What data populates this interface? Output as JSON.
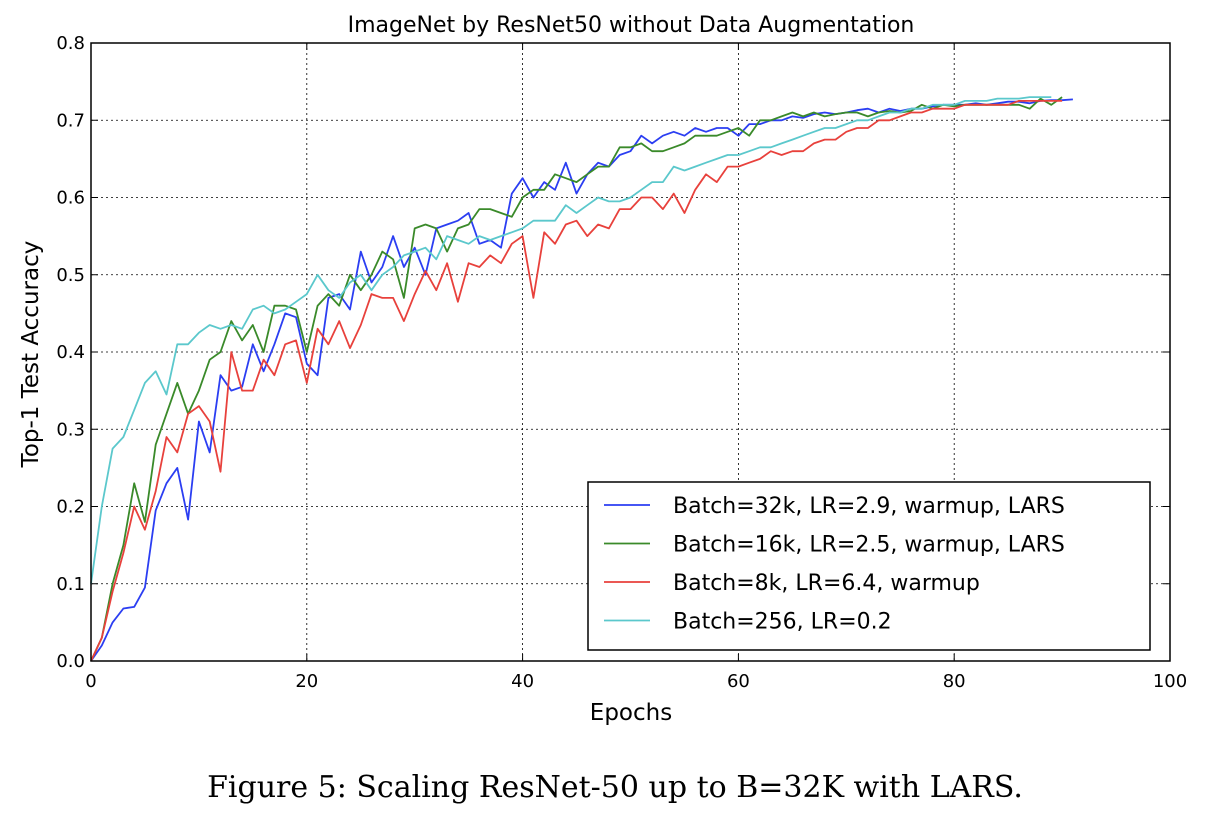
{
  "caption": "Figure 5: Scaling ResNet-50 up to B=32K with LARS.",
  "chart_data": {
    "type": "line",
    "title": "ImageNet by ResNet50 without Data Augmentation",
    "xlabel": "Epochs",
    "ylabel": "Top-1 Test Accuracy",
    "xlim": [
      0,
      100
    ],
    "ylim": [
      0.0,
      0.8
    ],
    "xticks": [
      "0",
      "20",
      "40",
      "60",
      "80",
      "100"
    ],
    "yticks": [
      "0.0",
      "0.1",
      "0.2",
      "0.3",
      "0.4",
      "0.5",
      "0.6",
      "0.7",
      "0.8"
    ],
    "grid": true,
    "legend_position": "lower right",
    "series": [
      {
        "name": "Batch=32k, LR=2.9, warmup, LARS",
        "color": "#2b3ef2",
        "x": [
          0,
          1,
          2,
          3,
          4,
          5,
          6,
          7,
          8,
          9,
          10,
          11,
          12,
          13,
          14,
          15,
          16,
          17,
          18,
          19,
          20,
          21,
          22,
          23,
          24,
          25,
          26,
          27,
          28,
          29,
          30,
          31,
          32,
          33,
          34,
          35,
          36,
          37,
          38,
          39,
          40,
          41,
          42,
          43,
          44,
          45,
          46,
          47,
          48,
          49,
          50,
          51,
          52,
          53,
          54,
          55,
          56,
          57,
          58,
          59,
          60,
          61,
          62,
          63,
          64,
          65,
          66,
          67,
          68,
          69,
          70,
          71,
          72,
          73,
          74,
          75,
          76,
          77,
          78,
          79,
          80,
          81,
          82,
          83,
          84,
          85,
          86,
          87,
          88,
          89,
          90,
          91
        ],
        "y": [
          0.0,
          0.02,
          0.05,
          0.068,
          0.07,
          0.095,
          0.195,
          0.23,
          0.25,
          0.183,
          0.31,
          0.27,
          0.37,
          0.35,
          0.355,
          0.41,
          0.375,
          0.41,
          0.45,
          0.445,
          0.385,
          0.37,
          0.47,
          0.475,
          0.455,
          0.53,
          0.49,
          0.51,
          0.55,
          0.51,
          0.535,
          0.5,
          0.56,
          0.565,
          0.57,
          0.58,
          0.54,
          0.545,
          0.535,
          0.605,
          0.625,
          0.6,
          0.62,
          0.61,
          0.645,
          0.605,
          0.63,
          0.645,
          0.64,
          0.655,
          0.66,
          0.68,
          0.67,
          0.68,
          0.685,
          0.68,
          0.69,
          0.685,
          0.69,
          0.69,
          0.68,
          0.695,
          0.695,
          0.7,
          0.7,
          0.705,
          0.703,
          0.708,
          0.71,
          0.708,
          0.71,
          0.713,
          0.715,
          0.71,
          0.715,
          0.712,
          0.715,
          0.715,
          0.718,
          0.72,
          0.72,
          0.72,
          0.722,
          0.72,
          0.722,
          0.724,
          0.724,
          0.722,
          0.725,
          0.726,
          0.726,
          0.727
        ]
      },
      {
        "name": "Batch=16k, LR=2.5, warmup, LARS",
        "color": "#3a8a2a",
        "x": [
          0,
          1,
          2,
          3,
          4,
          5,
          6,
          7,
          8,
          9,
          10,
          11,
          12,
          13,
          14,
          15,
          16,
          17,
          18,
          19,
          20,
          21,
          22,
          23,
          24,
          25,
          26,
          27,
          28,
          29,
          30,
          31,
          32,
          33,
          34,
          35,
          36,
          37,
          38,
          39,
          40,
          41,
          42,
          43,
          44,
          45,
          46,
          47,
          48,
          49,
          50,
          51,
          52,
          53,
          54,
          55,
          56,
          57,
          58,
          59,
          60,
          61,
          62,
          63,
          64,
          65,
          66,
          67,
          68,
          69,
          70,
          71,
          72,
          73,
          74,
          75,
          76,
          77,
          78,
          79,
          80,
          81,
          82,
          83,
          84,
          85,
          86,
          87,
          88,
          89,
          90
        ],
        "y": [
          0.0,
          0.03,
          0.1,
          0.15,
          0.23,
          0.18,
          0.28,
          0.32,
          0.36,
          0.32,
          0.35,
          0.39,
          0.4,
          0.44,
          0.415,
          0.435,
          0.4,
          0.46,
          0.46,
          0.455,
          0.4,
          0.46,
          0.475,
          0.46,
          0.5,
          0.48,
          0.5,
          0.53,
          0.52,
          0.47,
          0.56,
          0.565,
          0.56,
          0.53,
          0.56,
          0.565,
          0.585,
          0.585,
          0.58,
          0.575,
          0.6,
          0.61,
          0.61,
          0.63,
          0.625,
          0.62,
          0.63,
          0.64,
          0.64,
          0.665,
          0.665,
          0.67,
          0.66,
          0.66,
          0.665,
          0.67,
          0.68,
          0.68,
          0.68,
          0.685,
          0.69,
          0.68,
          0.7,
          0.7,
          0.705,
          0.71,
          0.705,
          0.71,
          0.705,
          0.708,
          0.71,
          0.71,
          0.705,
          0.71,
          0.712,
          0.71,
          0.712,
          0.72,
          0.715,
          0.72,
          0.718,
          0.72,
          0.72,
          0.72,
          0.72,
          0.72,
          0.72,
          0.715,
          0.728,
          0.72,
          0.73
        ]
      },
      {
        "name": "Batch=8k, LR=6.4, warmup",
        "color": "#e8413c",
        "x": [
          0,
          1,
          2,
          3,
          4,
          5,
          6,
          7,
          8,
          9,
          10,
          11,
          12,
          13,
          14,
          15,
          16,
          17,
          18,
          19,
          20,
          21,
          22,
          23,
          24,
          25,
          26,
          27,
          28,
          29,
          30,
          31,
          32,
          33,
          34,
          35,
          36,
          37,
          38,
          39,
          40,
          41,
          42,
          43,
          44,
          45,
          46,
          47,
          48,
          49,
          50,
          51,
          52,
          53,
          54,
          55,
          56,
          57,
          58,
          59,
          60,
          61,
          62,
          63,
          64,
          65,
          66,
          67,
          68,
          69,
          70,
          71,
          72,
          73,
          74,
          75,
          76,
          77,
          78,
          79,
          80,
          81,
          82,
          83,
          84,
          85,
          86,
          87,
          88,
          89,
          90
        ],
        "y": [
          0.0,
          0.03,
          0.09,
          0.14,
          0.2,
          0.17,
          0.22,
          0.29,
          0.27,
          0.32,
          0.33,
          0.31,
          0.245,
          0.4,
          0.35,
          0.35,
          0.39,
          0.37,
          0.41,
          0.415,
          0.36,
          0.43,
          0.41,
          0.44,
          0.405,
          0.435,
          0.475,
          0.47,
          0.47,
          0.44,
          0.475,
          0.505,
          0.48,
          0.515,
          0.465,
          0.515,
          0.51,
          0.525,
          0.515,
          0.54,
          0.55,
          0.47,
          0.555,
          0.54,
          0.565,
          0.57,
          0.55,
          0.565,
          0.56,
          0.585,
          0.585,
          0.6,
          0.6,
          0.585,
          0.605,
          0.58,
          0.61,
          0.63,
          0.62,
          0.64,
          0.64,
          0.645,
          0.65,
          0.66,
          0.655,
          0.66,
          0.66,
          0.67,
          0.675,
          0.675,
          0.685,
          0.69,
          0.69,
          0.7,
          0.7,
          0.705,
          0.71,
          0.71,
          0.715,
          0.715,
          0.715,
          0.72,
          0.72,
          0.72,
          0.72,
          0.72,
          0.725,
          0.725,
          0.725,
          0.725,
          0.725
        ]
      },
      {
        "name": "Batch=256, LR=0.2",
        "color": "#5bc8cc",
        "x": [
          0,
          1,
          2,
          3,
          4,
          5,
          6,
          7,
          8,
          9,
          10,
          11,
          12,
          13,
          14,
          15,
          16,
          17,
          18,
          19,
          20,
          21,
          22,
          23,
          24,
          25,
          26,
          27,
          28,
          29,
          30,
          31,
          32,
          33,
          34,
          35,
          36,
          37,
          38,
          39,
          40,
          41,
          42,
          43,
          44,
          45,
          46,
          47,
          48,
          49,
          50,
          51,
          52,
          53,
          54,
          55,
          56,
          57,
          58,
          59,
          60,
          61,
          62,
          63,
          64,
          65,
          66,
          67,
          68,
          69,
          70,
          71,
          72,
          73,
          74,
          75,
          76,
          77,
          78,
          79,
          80,
          81,
          82,
          83,
          84,
          85,
          86,
          87,
          88,
          89
        ],
        "y": [
          0.1,
          0.2,
          0.275,
          0.29,
          0.325,
          0.36,
          0.375,
          0.345,
          0.41,
          0.41,
          0.425,
          0.435,
          0.43,
          0.435,
          0.43,
          0.455,
          0.46,
          0.45,
          0.455,
          0.465,
          0.475,
          0.5,
          0.48,
          0.47,
          0.49,
          0.5,
          0.48,
          0.5,
          0.51,
          0.525,
          0.53,
          0.535,
          0.52,
          0.55,
          0.545,
          0.54,
          0.55,
          0.545,
          0.55,
          0.555,
          0.56,
          0.57,
          0.57,
          0.57,
          0.59,
          0.58,
          0.59,
          0.6,
          0.595,
          0.595,
          0.6,
          0.61,
          0.62,
          0.62,
          0.64,
          0.635,
          0.64,
          0.645,
          0.65,
          0.655,
          0.655,
          0.66,
          0.665,
          0.665,
          0.67,
          0.675,
          0.68,
          0.685,
          0.69,
          0.69,
          0.695,
          0.7,
          0.7,
          0.705,
          0.71,
          0.71,
          0.715,
          0.715,
          0.72,
          0.72,
          0.72,
          0.725,
          0.725,
          0.725,
          0.728,
          0.728,
          0.728,
          0.73,
          0.73,
          0.73
        ]
      }
    ]
  }
}
